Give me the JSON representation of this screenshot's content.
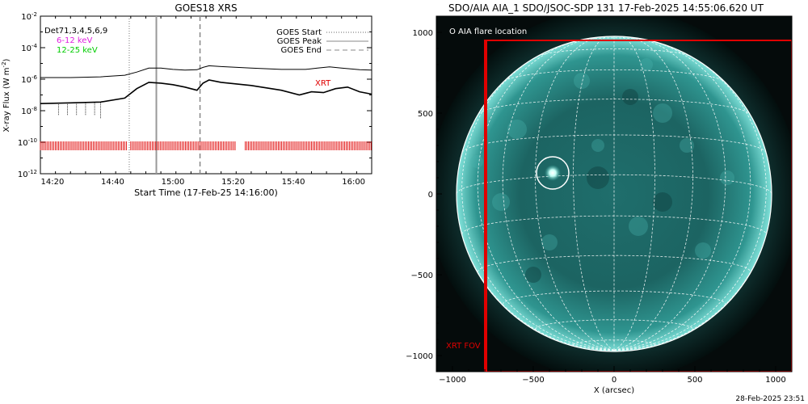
{
  "goes": {
    "title": "GOES18 XRS",
    "ylabel": "X-ray Flux (W m",
    "ylabel_sup": "-2",
    "ylabel_end": ")",
    "xlabel": "Start Time (17-Feb-25 14:16:00)",
    "detectors": "Det71,3,4,5,6,9",
    "band_low": "6-12 keV",
    "band_high": "12-25 keV",
    "band_low_color": "#e020e0",
    "band_high_color": "#00cc00",
    "legend": {
      "start": "GOES Start",
      "peak": "GOES Peak",
      "end": "GOES End"
    },
    "xrt_label": "XRT",
    "xrt_color": "#e00000"
  },
  "aia": {
    "title": "SDO/AIA AIA_1 SDO/JSOC-SDP 131 17-Feb-2025 14:55:06.620 UT",
    "flare_legend": "O AIA flare location",
    "xrt_fov_label": "XRT FOV",
    "xlabel": "X (arcsec)",
    "timestamp": "28-Feb-2025 23:51",
    "disk_color": "#2a8a86",
    "fov_color": "#e00000"
  },
  "chart_data": [
    {
      "type": "line",
      "title": "GOES18 XRS",
      "xlabel": "Start Time (17-Feb-25 14:16:00)",
      "ylabel": "X-ray Flux (W m-2)",
      "yscale": "log",
      "x_tick_labels": [
        "14:20",
        "14:40",
        "15:00",
        "15:20",
        "15:40",
        "16:00"
      ],
      "y_tick_labels": [
        "10-2",
        "10-4",
        "10-6",
        "10-8",
        "10-10",
        "10-12"
      ],
      "x_minutes_after_start": [
        4,
        24,
        44,
        64,
        84,
        104
      ],
      "xlim_minutes": [
        0,
        110
      ],
      "ylim_log10": [
        -12,
        -2
      ],
      "markers_minutes": {
        "goes_start": 29.5,
        "goes_peak": 38.5,
        "goes_end": 53
      },
      "series": [
        {
          "name": "long channel",
          "x_minutes": [
            0,
            10,
            20,
            28,
            32,
            36,
            40,
            44,
            48,
            52,
            54,
            56,
            60,
            70,
            80,
            88,
            92,
            96,
            100,
            106,
            110
          ],
          "log10_flux": [
            -5.9,
            -5.9,
            -5.85,
            -5.75,
            -5.55,
            -5.3,
            -5.3,
            -5.38,
            -5.42,
            -5.4,
            -5.25,
            -5.15,
            -5.2,
            -5.3,
            -5.38,
            -5.38,
            -5.3,
            -5.22,
            -5.3,
            -5.4,
            -5.42
          ]
        },
        {
          "name": "short channel",
          "x_minutes": [
            0,
            10,
            20,
            28,
            32,
            36,
            40,
            44,
            48,
            52,
            54,
            56,
            60,
            70,
            80,
            86,
            90,
            94,
            98,
            102,
            106,
            110
          ],
          "log10_flux": [
            -7.55,
            -7.5,
            -7.45,
            -7.2,
            -6.6,
            -6.2,
            -6.25,
            -6.35,
            -6.5,
            -6.7,
            -6.25,
            -6.05,
            -6.2,
            -6.4,
            -6.7,
            -7.0,
            -6.8,
            -6.85,
            -6.6,
            -6.5,
            -6.8,
            -6.95
          ]
        }
      ],
      "xrt_coverage_minutes": [
        [
          0,
          29
        ],
        [
          30,
          65
        ],
        [
          68,
          110
        ]
      ]
    },
    {
      "type": "scatter",
      "title": "SDO/AIA AIA_1 SDO/JSOC-SDP 131 17-Feb-2025 14:55:06.620 UT",
      "xlabel": "X (arcsec)",
      "x_ticks": [
        -1000,
        -500,
        0,
        500,
        1000
      ],
      "y_ticks": [
        1000,
        500,
        0,
        -500,
        -1000
      ],
      "xlim": [
        -1100,
        1100
      ],
      "ylim": [
        -1100,
        1100
      ],
      "solar_radius_arcsec": 975,
      "flare_location": {
        "x": -380,
        "y": 130
      },
      "xrt_fov": {
        "x0": -800,
        "x1": 1100,
        "y0": -1100,
        "y1": 950
      }
    }
  ]
}
